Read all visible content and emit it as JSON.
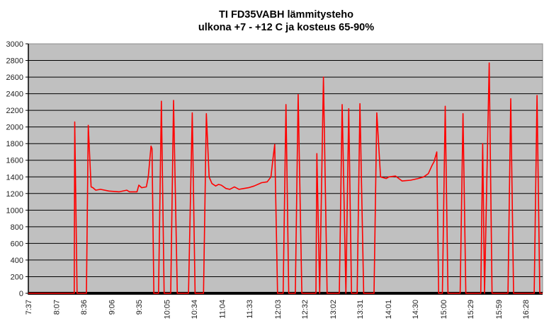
{
  "chart_data": {
    "type": "line",
    "title": [
      "TI FD35VABH lämmitysteho",
      "ulkona +7 - +12 C ja kosteus 65-90%"
    ],
    "xlabel": "",
    "ylabel": "",
    "x_unit": "minutes since 7:37",
    "xlim": [
      0,
      549
    ],
    "ylim": [
      0,
      3000
    ],
    "yticks": [
      0,
      200,
      400,
      600,
      800,
      1000,
      1200,
      1400,
      1600,
      1800,
      2000,
      2200,
      2400,
      2600,
      2800,
      3000
    ],
    "xticks": [
      {
        "x": 0,
        "label": "7:37"
      },
      {
        "x": 30,
        "label": "8:07"
      },
      {
        "x": 59,
        "label": "8:36"
      },
      {
        "x": 89,
        "label": "9:06"
      },
      {
        "x": 118,
        "label": "9:35"
      },
      {
        "x": 148,
        "label": "10:05"
      },
      {
        "x": 177,
        "label": "10:34"
      },
      {
        "x": 207,
        "label": "11:04"
      },
      {
        "x": 236,
        "label": "11:33"
      },
      {
        "x": 266,
        "label": "12:03"
      },
      {
        "x": 295,
        "label": "12:32"
      },
      {
        "x": 325,
        "label": "13:02"
      },
      {
        "x": 354,
        "label": "13:31"
      },
      {
        "x": 384,
        "label": "14:01"
      },
      {
        "x": 413,
        "label": "14:30"
      },
      {
        "x": 443,
        "label": "15:00"
      },
      {
        "x": 472,
        "label": "15:29"
      },
      {
        "x": 502,
        "label": "15:59"
      },
      {
        "x": 531,
        "label": "16:28"
      }
    ],
    "grid": true,
    "legend": "none",
    "colors": {
      "line": "#ff0000",
      "plot_bg": "#c0c0c0",
      "grid": "#000000"
    },
    "series": [
      {
        "name": "lämmitysteho",
        "points": [
          [
            0,
            0
          ],
          [
            49,
            0
          ],
          [
            49.5,
            2060
          ],
          [
            52,
            0
          ],
          [
            62,
            0
          ],
          [
            64,
            2020
          ],
          [
            67,
            1280
          ],
          [
            69,
            1270
          ],
          [
            72,
            1240
          ],
          [
            77,
            1250
          ],
          [
            86,
            1230
          ],
          [
            97,
            1220
          ],
          [
            105,
            1240
          ],
          [
            108,
            1220
          ],
          [
            116,
            1220
          ],
          [
            118,
            1300
          ],
          [
            121,
            1270
          ],
          [
            126,
            1280
          ],
          [
            128,
            1400
          ],
          [
            131,
            1770
          ],
          [
            132,
            1740
          ],
          [
            134,
            0
          ],
          [
            139,
            0
          ],
          [
            142,
            2310
          ],
          [
            145,
            0
          ],
          [
            152,
            0
          ],
          [
            155,
            2320
          ],
          [
            159,
            0
          ],
          [
            171,
            0
          ],
          [
            175,
            2170
          ],
          [
            178,
            0
          ],
          [
            187,
            0
          ],
          [
            190,
            2160
          ],
          [
            193,
            1400
          ],
          [
            196,
            1320
          ],
          [
            200,
            1290
          ],
          [
            203,
            1310
          ],
          [
            206,
            1300
          ],
          [
            211,
            1260
          ],
          [
            215,
            1250
          ],
          [
            220,
            1280
          ],
          [
            225,
            1250
          ],
          [
            230,
            1260
          ],
          [
            235,
            1270
          ],
          [
            241,
            1290
          ],
          [
            249,
            1330
          ],
          [
            255,
            1340
          ],
          [
            259,
            1400
          ],
          [
            261,
            1600
          ],
          [
            263,
            1790
          ],
          [
            266,
            0
          ],
          [
            272,
            0
          ],
          [
            275,
            2270
          ],
          [
            278,
            0
          ],
          [
            285,
            0
          ],
          [
            288,
            2390
          ],
          [
            292,
            0
          ],
          [
            307,
            0
          ],
          [
            308,
            1680
          ],
          [
            311,
            0
          ],
          [
            315,
            2600
          ],
          [
            319,
            0
          ],
          [
            332,
            0
          ],
          [
            335,
            2270
          ],
          [
            339,
            0
          ],
          [
            342,
            2220
          ],
          [
            345,
            0
          ],
          [
            351,
            0
          ],
          [
            354,
            2280
          ],
          [
            358,
            0
          ],
          [
            369,
            0
          ],
          [
            372,
            2170
          ],
          [
            376,
            1400
          ],
          [
            382,
            1380
          ],
          [
            385,
            1400
          ],
          [
            392,
            1410
          ],
          [
            399,
            1350
          ],
          [
            408,
            1360
          ],
          [
            416,
            1380
          ],
          [
            422,
            1400
          ],
          [
            427,
            1440
          ],
          [
            431,
            1540
          ],
          [
            433,
            1580
          ],
          [
            436,
            1700
          ],
          [
            438,
            0
          ],
          [
            442,
            0
          ],
          [
            445,
            2250
          ],
          [
            448,
            0
          ],
          [
            461,
            0
          ],
          [
            464,
            2160
          ],
          [
            467,
            0
          ],
          [
            483,
            0
          ],
          [
            485,
            1800
          ],
          [
            487,
            0
          ],
          [
            492,
            2770
          ],
          [
            495,
            0
          ],
          [
            512,
            0
          ],
          [
            515,
            2340
          ],
          [
            518,
            0
          ],
          [
            540,
            0
          ],
          [
            543,
            2380
          ],
          [
            546,
            0
          ],
          [
            549,
            0
          ]
        ]
      }
    ]
  }
}
